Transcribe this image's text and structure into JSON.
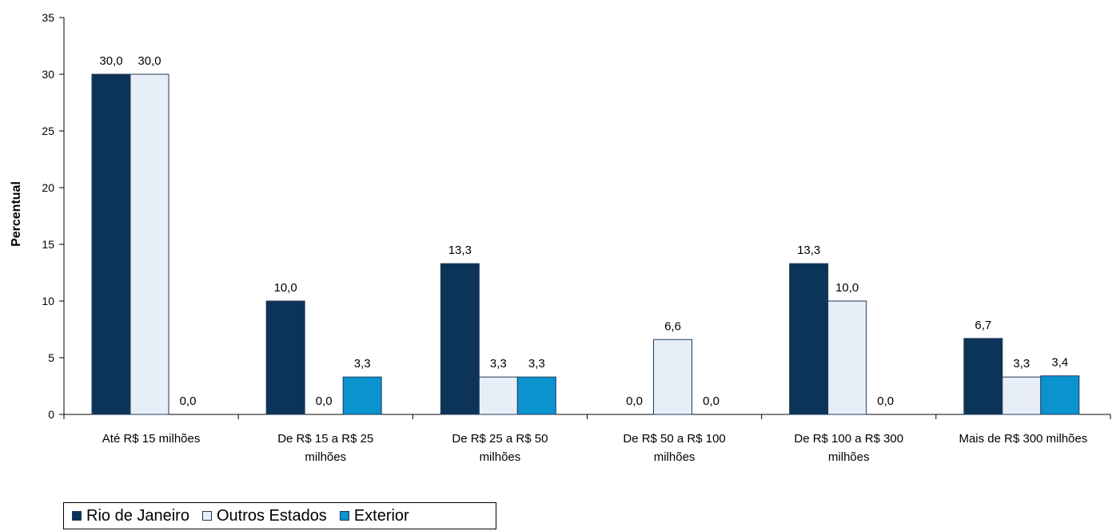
{
  "colors": {
    "rio": "#0b3458",
    "outros": "#e8eef8",
    "exterior": "#0a93cf",
    "outline": "#1f3a5a"
  },
  "legend": {
    "items": [
      {
        "name": "Rio de Janeiro",
        "color": "#0b3458"
      },
      {
        "name": "Outros Estados",
        "color": "#e8eef8"
      },
      {
        "name": "Exterior",
        "color": "#0a93cf"
      }
    ]
  },
  "chart_data": {
    "type": "bar",
    "categories": [
      [
        "Até R$ 15 milhões"
      ],
      [
        "De R$ 15 a R$ 25",
        "milhões"
      ],
      [
        "De R$ 25 a R$ 50",
        "milhões"
      ],
      [
        "De R$ 50 a R$ 100",
        "milhões"
      ],
      [
        "De R$ 100 a R$ 300",
        "milhões"
      ],
      [
        "Mais de R$ 300 milhões"
      ]
    ],
    "series": [
      {
        "name": "Rio de Janeiro",
        "values": [
          30.0,
          10.0,
          13.3,
          0.0,
          13.3,
          6.7
        ],
        "labels": [
          "30,0",
          "10,0",
          "13,3",
          "0,0",
          "13,3",
          "6,7"
        ]
      },
      {
        "name": "Outros Estados",
        "values": [
          30.0,
          0.0,
          3.3,
          6.6,
          10.0,
          3.3
        ],
        "labels": [
          "30,0",
          "0,0",
          "3,3",
          "6,6",
          "10,0",
          "3,3"
        ]
      },
      {
        "name": "Exterior",
        "values": [
          0.0,
          3.3,
          3.3,
          0.0,
          0.0,
          3.4
        ],
        "labels": [
          "0,0",
          "3,3",
          "3,3",
          "0,0",
          "0,0",
          "3,4"
        ]
      }
    ],
    "ylabel": "Percentual",
    "ylim": [
      0,
      35
    ],
    "yticks": [
      0,
      5,
      10,
      15,
      20,
      25,
      30,
      35
    ],
    "grid": false,
    "legend_position": "bottom-left"
  }
}
